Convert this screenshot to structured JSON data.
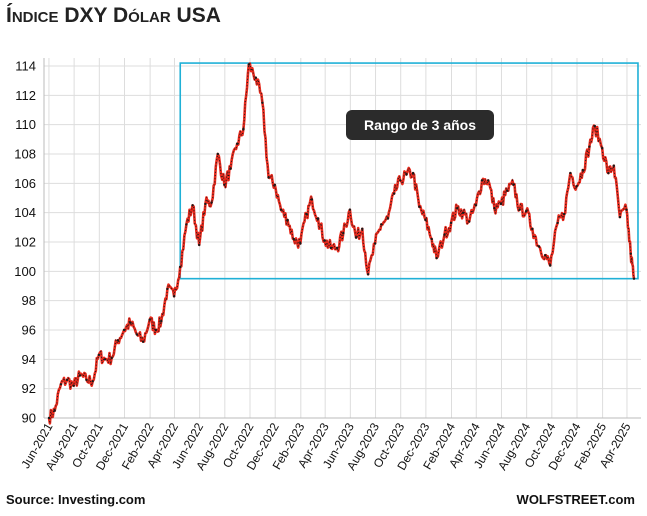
{
  "title": "Índice DXY Dólar USA",
  "source": "Source: Investing.com",
  "credit": "WOLFSTREET.com",
  "colors": {
    "line": "#e8291c",
    "dots": "#1a1a1a",
    "box": "#1fb0d6",
    "annotation_bg": "#2b2b2b",
    "grid": "#dddddd"
  },
  "chart_data": {
    "type": "line",
    "title": "Índice DXY Dólar USA",
    "xlabel": "",
    "ylabel": "",
    "ylim": [
      90,
      114
    ],
    "yticks": [
      90,
      92,
      94,
      96,
      98,
      100,
      102,
      104,
      106,
      108,
      110,
      112,
      114
    ],
    "grid": true,
    "x_tick_labels": [
      "Jun-2021",
      "Aug-2021",
      "Oct-2021",
      "Dec-2021",
      "Feb-2022",
      "Apr-2022",
      "Jun-2022",
      "Aug-2022",
      "Oct-2022",
      "Dec-2022",
      "Feb-2023",
      "Apr-2023",
      "Jun-2023",
      "Aug-2023",
      "Oct-2023",
      "Dec-2023",
      "Feb-2024",
      "Apr-2024",
      "Jun-2024",
      "Aug-2024",
      "Oct-2024",
      "Dec-2024",
      "Feb-2025",
      "Apr-2025"
    ],
    "series": [
      {
        "values": [
          [
            "2021-06-01",
            90.0
          ],
          [
            "2021-06-15",
            90.5
          ],
          [
            "2021-06-30",
            92.3
          ],
          [
            "2021-07-15",
            92.6
          ],
          [
            "2021-07-31",
            92.2
          ],
          [
            "2021-08-15",
            92.9
          ],
          [
            "2021-08-31",
            92.6
          ],
          [
            "2021-09-15",
            92.5
          ],
          [
            "2021-09-30",
            94.3
          ],
          [
            "2021-10-15",
            94.0
          ],
          [
            "2021-10-31",
            94.1
          ],
          [
            "2021-11-15",
            95.3
          ],
          [
            "2021-11-30",
            96.0
          ],
          [
            "2021-12-15",
            96.5
          ],
          [
            "2021-12-31",
            95.7
          ],
          [
            "2022-01-15",
            95.2
          ],
          [
            "2022-01-31",
            96.7
          ],
          [
            "2022-02-15",
            96.0
          ],
          [
            "2022-02-28",
            96.6
          ],
          [
            "2022-03-15",
            98.8
          ],
          [
            "2022-03-31",
            98.3
          ],
          [
            "2022-04-15",
            100.3
          ],
          [
            "2022-04-30",
            103.2
          ],
          [
            "2022-05-15",
            104.5
          ],
          [
            "2022-05-31",
            101.8
          ],
          [
            "2022-06-15",
            104.6
          ],
          [
            "2022-06-30",
            104.7
          ],
          [
            "2022-07-15",
            108.0
          ],
          [
            "2022-07-31",
            105.9
          ],
          [
            "2022-08-15",
            107.0
          ],
          [
            "2022-08-31",
            108.7
          ],
          [
            "2022-09-15",
            109.7
          ],
          [
            "2022-09-28",
            114.1
          ],
          [
            "2022-10-15",
            113.2
          ],
          [
            "2022-10-31",
            111.5
          ],
          [
            "2022-11-15",
            106.4
          ],
          [
            "2022-11-30",
            105.9
          ],
          [
            "2022-12-15",
            104.2
          ],
          [
            "2022-12-31",
            103.5
          ],
          [
            "2023-01-15",
            102.2
          ],
          [
            "2023-01-31",
            101.9
          ],
          [
            "2023-02-15",
            103.9
          ],
          [
            "2023-02-28",
            104.9
          ],
          [
            "2023-03-15",
            103.6
          ],
          [
            "2023-03-31",
            102.1
          ],
          [
            "2023-04-15",
            101.6
          ],
          [
            "2023-04-30",
            101.6
          ],
          [
            "2023-05-15",
            102.6
          ],
          [
            "2023-05-31",
            104.2
          ],
          [
            "2023-06-15",
            102.3
          ],
          [
            "2023-06-30",
            102.9
          ],
          [
            "2023-07-14",
            99.8
          ],
          [
            "2023-07-31",
            101.9
          ],
          [
            "2023-08-15",
            103.2
          ],
          [
            "2023-08-31",
            103.6
          ],
          [
            "2023-09-15",
            105.3
          ],
          [
            "2023-09-30",
            106.2
          ],
          [
            "2023-10-15",
            106.6
          ],
          [
            "2023-10-31",
            106.7
          ],
          [
            "2023-11-15",
            104.4
          ],
          [
            "2023-11-30",
            103.5
          ],
          [
            "2023-12-15",
            102.2
          ],
          [
            "2023-12-27",
            100.9
          ],
          [
            "2024-01-15",
            102.5
          ],
          [
            "2024-01-31",
            103.3
          ],
          [
            "2024-02-15",
            104.3
          ],
          [
            "2024-02-29",
            104.0
          ],
          [
            "2024-03-15",
            103.4
          ],
          [
            "2024-03-31",
            104.5
          ],
          [
            "2024-04-15",
            106.2
          ],
          [
            "2024-04-30",
            106.2
          ],
          [
            "2024-05-15",
            104.3
          ],
          [
            "2024-05-31",
            104.6
          ],
          [
            "2024-06-15",
            105.5
          ],
          [
            "2024-06-30",
            105.9
          ],
          [
            "2024-07-15",
            104.2
          ],
          [
            "2024-07-31",
            104.1
          ],
          [
            "2024-08-15",
            102.9
          ],
          [
            "2024-08-31",
            101.7
          ],
          [
            "2024-09-15",
            101.1
          ],
          [
            "2024-09-27",
            100.4
          ],
          [
            "2024-10-15",
            103.3
          ],
          [
            "2024-10-31",
            103.9
          ],
          [
            "2024-11-15",
            106.7
          ],
          [
            "2024-11-30",
            105.8
          ],
          [
            "2024-12-15",
            106.9
          ],
          [
            "2024-12-31",
            108.5
          ],
          [
            "2025-01-13",
            109.9
          ],
          [
            "2025-01-31",
            108.4
          ],
          [
            "2025-02-15",
            106.7
          ],
          [
            "2025-02-28",
            107.2
          ],
          [
            "2025-03-15",
            103.7
          ],
          [
            "2025-03-31",
            104.2
          ],
          [
            "2025-04-10",
            101.2
          ],
          [
            "2025-04-18",
            99.5
          ]
        ]
      }
    ],
    "annotations": [
      {
        "text": "Rango de 3 años",
        "x_start": "2022-04-15",
        "x_end": "2025-04-18",
        "y_min": 99.5,
        "y_max": 114.2
      }
    ]
  }
}
